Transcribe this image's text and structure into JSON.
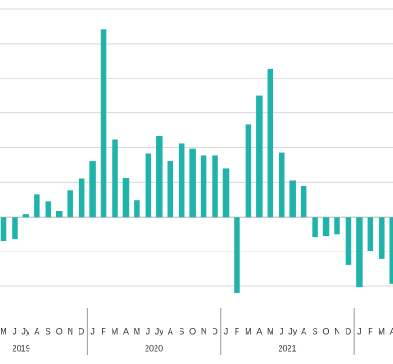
{
  "chart_data": {
    "type": "bar",
    "color": "#1fb3ab",
    "grid": true,
    "ylim": [
      -2,
      6
    ],
    "yticks": [
      -2,
      -1,
      0,
      1,
      2,
      3,
      4,
      5,
      6
    ],
    "groups": [
      {
        "label": "2019",
        "categories": [
          "M",
          "J",
          "Jy",
          "A",
          "S",
          "O",
          "N",
          "D"
        ],
        "values": [
          -0.69,
          -0.64,
          0.08,
          0.64,
          0.46,
          0.18,
          0.77,
          1.1
        ]
      },
      {
        "label": "2020",
        "categories": [
          "J",
          "F",
          "M",
          "A",
          "M",
          "J",
          "Jy",
          "A",
          "S",
          "O",
          "N",
          "D"
        ],
        "values": [
          1.6,
          5.4,
          2.23,
          1.13,
          0.49,
          1.82,
          2.33,
          1.6,
          2.13,
          1.97,
          1.77,
          1.77
        ]
      },
      {
        "label": "2021",
        "categories": [
          "J",
          "F",
          "M",
          "A",
          "M",
          "J",
          "Jy",
          "A",
          "S",
          "O",
          "N",
          "D"
        ],
        "values": [
          1.41,
          -2.18,
          2.67,
          3.49,
          4.28,
          1.87,
          1.05,
          0.9,
          -0.59,
          -0.54,
          -0.49,
          -1.38
        ]
      },
      {
        "label": null,
        "categories": [
          "J",
          "F",
          "M",
          "A"
        ],
        "values": [
          -2.03,
          -0.97,
          -1.2,
          -1.92
        ]
      }
    ]
  }
}
